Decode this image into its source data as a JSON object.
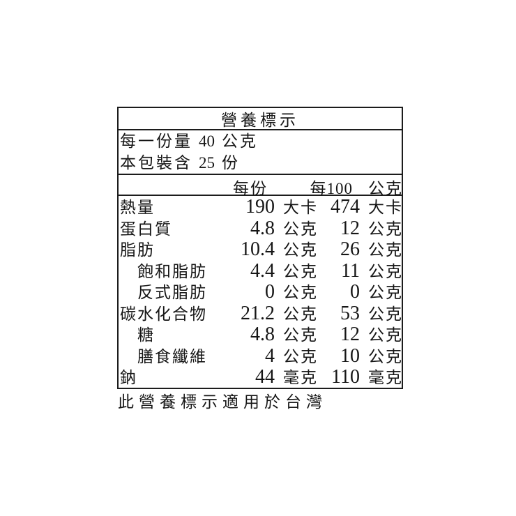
{
  "nutrition_label": {
    "title": "營養標示",
    "serving_info": {
      "serving_size_label": "每一份量",
      "serving_size_value": "40",
      "serving_size_unit": "公克",
      "package_servings_label": "本包裝含",
      "package_servings_value": "25",
      "package_servings_unit": "份"
    },
    "column_headers": {
      "per_serving": "每份",
      "per_100g_prefix": "每100",
      "per_100g_unit": "公克"
    },
    "nutrients": [
      {
        "name": "熱量",
        "ps_value": "190",
        "ps_unit": "大卡",
        "p100_value": "474",
        "p100_unit": "大卡"
      },
      {
        "name": "蛋白質",
        "ps_value": "4.8",
        "ps_unit": "公克",
        "p100_value": "12",
        "p100_unit": "公克"
      },
      {
        "name": "脂肪",
        "ps_value": "10.4",
        "ps_unit": "公克",
        "p100_value": "26",
        "p100_unit": "公克"
      },
      {
        "name": "飽和脂肪",
        "ps_value": "4.4",
        "ps_unit": "公克",
        "p100_value": "11",
        "p100_unit": "公克"
      },
      {
        "name": "反式脂肪",
        "ps_value": "0",
        "ps_unit": "公克",
        "p100_value": "0",
        "p100_unit": "公克"
      },
      {
        "name": "碳水化合物",
        "ps_value": "21.2",
        "ps_unit": "公克",
        "p100_value": "53",
        "p100_unit": "公克"
      },
      {
        "name": "糖",
        "ps_value": "4.8",
        "ps_unit": "公克",
        "p100_value": "12",
        "p100_unit": "公克"
      },
      {
        "name": "膳食纖維",
        "ps_value": "4",
        "ps_unit": "公克",
        "p100_value": "10",
        "p100_unit": "公克"
      },
      {
        "name": "鈉",
        "ps_value": "44",
        "ps_unit": "毫克",
        "p100_value": "110",
        "p100_unit": "毫克"
      }
    ],
    "footnote": "此營養標示適用於台灣"
  }
}
